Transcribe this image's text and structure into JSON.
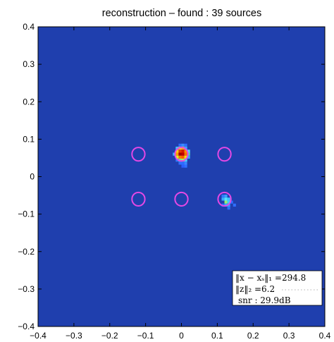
{
  "chart_data": {
    "type": "heatmap",
    "title": "reconstruction – found : 39 sources",
    "xlabel": "",
    "ylabel": "",
    "xlim": [
      -0.4,
      0.4
    ],
    "ylim": [
      -0.4,
      0.4
    ],
    "x_ticks": [
      "−0.4",
      "−0.3",
      "−0.2",
      "−0.1",
      "0",
      "0.1",
      "0.2",
      "0.3",
      "0.4"
    ],
    "y_ticks": [
      "0.4",
      "0.3",
      "0.2",
      "0.1",
      "0",
      "−0.1",
      "−0.2",
      "−0.3",
      "−0.4"
    ],
    "x_tick_values": [
      -0.4,
      -0.3,
      -0.2,
      -0.1,
      0,
      0.1,
      0.2,
      0.3,
      0.4
    ],
    "y_tick_values": [
      0.4,
      0.3,
      0.2,
      0.1,
      0,
      -0.1,
      -0.2,
      -0.3,
      -0.4
    ],
    "grid": false,
    "background_color": "#1f3fae",
    "colormap": "jet",
    "true_sources": [
      {
        "x": -0.12,
        "y": 0.06,
        "radius": 0.018
      },
      {
        "x": 0.0,
        "y": 0.06,
        "radius": 0.018
      },
      {
        "x": 0.12,
        "y": 0.06,
        "radius": 0.018
      },
      {
        "x": -0.12,
        "y": -0.06,
        "radius": 0.018
      },
      {
        "x": 0.0,
        "y": -0.06,
        "radius": 0.018
      },
      {
        "x": 0.12,
        "y": -0.06,
        "radius": 0.018
      }
    ],
    "circle_color": "#e548e5",
    "cells": [
      {
        "x": -0.004,
        "y": 0.084,
        "color": "#2f6fff"
      },
      {
        "x": 0.004,
        "y": 0.084,
        "color": "#3a8cff"
      },
      {
        "x": 0.012,
        "y": 0.084,
        "color": "#2f6fff"
      },
      {
        "x": -0.012,
        "y": 0.076,
        "color": "#3cc8ff"
      },
      {
        "x": -0.004,
        "y": 0.076,
        "color": "#f4d020"
      },
      {
        "x": 0.004,
        "y": 0.076,
        "color": "#ffb000"
      },
      {
        "x": 0.012,
        "y": 0.076,
        "color": "#3aa9ff"
      },
      {
        "x": -0.012,
        "y": 0.068,
        "color": "#ffcc10"
      },
      {
        "x": -0.004,
        "y": 0.068,
        "color": "#e83a00"
      },
      {
        "x": 0.004,
        "y": 0.068,
        "color": "#d41c00"
      },
      {
        "x": 0.012,
        "y": 0.068,
        "color": "#ff8a00"
      },
      {
        "x": 0.02,
        "y": 0.068,
        "color": "#4dd6ff"
      },
      {
        "x": -0.02,
        "y": 0.06,
        "color": "#3cb9ff"
      },
      {
        "x": -0.012,
        "y": 0.06,
        "color": "#ff9a00"
      },
      {
        "x": -0.004,
        "y": 0.06,
        "color": "#a40000"
      },
      {
        "x": 0.004,
        "y": 0.06,
        "color": "#c00000"
      },
      {
        "x": 0.012,
        "y": 0.06,
        "color": "#ff6a00"
      },
      {
        "x": 0.02,
        "y": 0.06,
        "color": "#54e0b0"
      },
      {
        "x": -0.012,
        "y": 0.052,
        "color": "#e0f020"
      },
      {
        "x": -0.004,
        "y": 0.052,
        "color": "#ff7a00"
      },
      {
        "x": 0.004,
        "y": 0.052,
        "color": "#ff5a00"
      },
      {
        "x": 0.012,
        "y": 0.052,
        "color": "#f0e010"
      },
      {
        "x": 0.02,
        "y": 0.052,
        "color": "#38a8ff"
      },
      {
        "x": -0.012,
        "y": 0.044,
        "color": "#2f7cff"
      },
      {
        "x": -0.004,
        "y": 0.044,
        "color": "#6ef090"
      },
      {
        "x": 0.004,
        "y": 0.044,
        "color": "#a8f060"
      },
      {
        "x": 0.012,
        "y": 0.044,
        "color": "#44d8ff"
      },
      {
        "x": -0.004,
        "y": 0.036,
        "color": "#2f6fff"
      },
      {
        "x": 0.004,
        "y": 0.036,
        "color": "#2d6bff"
      },
      {
        "x": 0.012,
        "y": 0.036,
        "color": "#3a86ff"
      },
      {
        "x": 0.004,
        "y": 0.028,
        "color": "#2a5dff"
      },
      {
        "x": 0.012,
        "y": 0.028,
        "color": "#2f6fff"
      },
      {
        "x": 0.116,
        "y": -0.052,
        "color": "#2f7cff"
      },
      {
        "x": 0.124,
        "y": -0.052,
        "color": "#38a0ff"
      },
      {
        "x": 0.116,
        "y": -0.06,
        "color": "#38b0ff"
      },
      {
        "x": 0.124,
        "y": -0.06,
        "color": "#54e6ff"
      },
      {
        "x": 0.132,
        "y": -0.06,
        "color": "#3cc6ff"
      },
      {
        "x": 0.124,
        "y": -0.068,
        "color": "#9cf070"
      },
      {
        "x": 0.132,
        "y": -0.068,
        "color": "#3cd2ff"
      },
      {
        "x": 0.14,
        "y": -0.068,
        "color": "#2f6fff"
      },
      {
        "x": 0.116,
        "y": -0.076,
        "color": "#2f6fff"
      },
      {
        "x": 0.124,
        "y": -0.076,
        "color": "#38a8ff"
      },
      {
        "x": 0.132,
        "y": -0.076,
        "color": "#3a9cff"
      },
      {
        "x": 0.148,
        "y": -0.076,
        "color": "#2f6fff"
      },
      {
        "x": 0.132,
        "y": -0.084,
        "color": "#2f6fff"
      }
    ],
    "annotation_lines": [
      "‖x − xₛ‖₁ =294.8",
      "‖z‖₂ =6.2",
      "snr : 29.9dB"
    ]
  }
}
